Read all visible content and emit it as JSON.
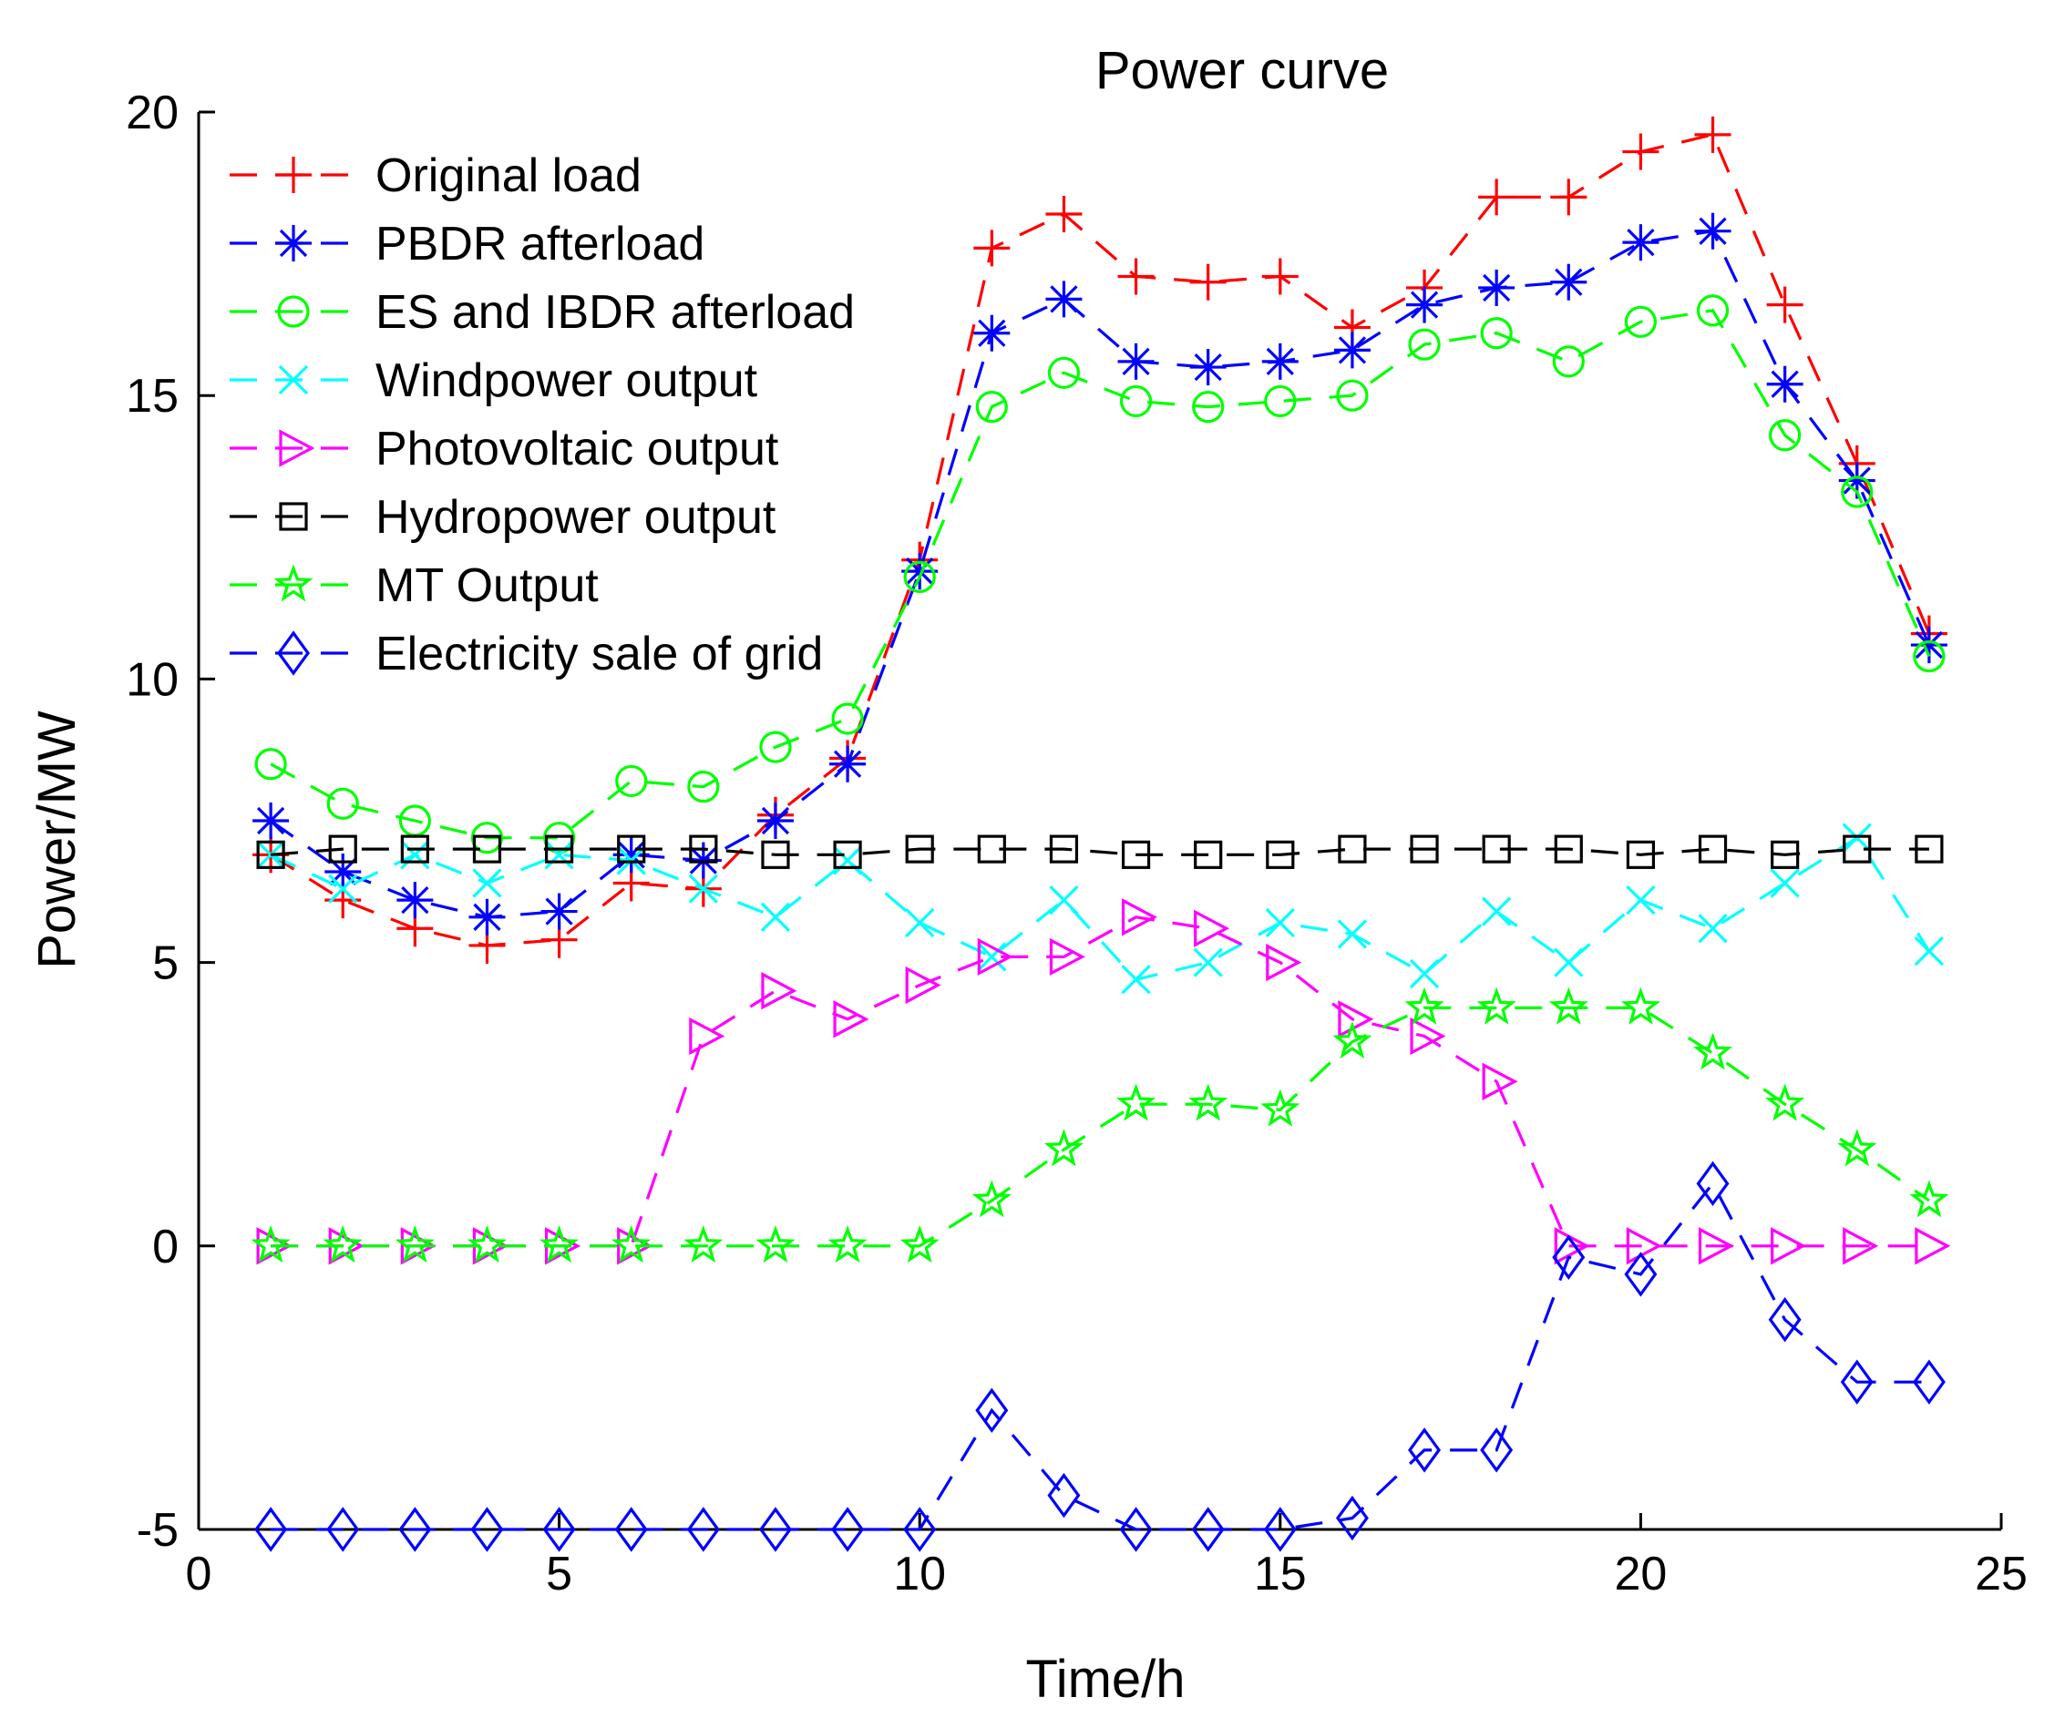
{
  "chart_data": {
    "type": "line",
    "title": "Power curve",
    "xlabel": "Time/h",
    "ylabel": "Power/MW",
    "xlim": [
      0,
      25
    ],
    "ylim": [
      -5,
      20
    ],
    "xticks": [
      "0",
      "5",
      "10",
      "15",
      "20",
      "25"
    ],
    "yticks": [
      "-5",
      "0",
      "5",
      "10",
      "15",
      "20"
    ],
    "grid": false,
    "legend_position": "top-left",
    "x": [
      1,
      2,
      3,
      4,
      5,
      6,
      7,
      8,
      9,
      10,
      11,
      12,
      13,
      14,
      15,
      16,
      17,
      18,
      19,
      20,
      21,
      22,
      23,
      24
    ],
    "series": [
      {
        "name": "Original load",
        "color": "#ff0000",
        "marker": "plus",
        "values": [
          6.9,
          6.1,
          5.6,
          5.3,
          5.4,
          6.4,
          6.3,
          7.6,
          8.6,
          12.1,
          17.6,
          18.2,
          17.1,
          17.0,
          17.1,
          16.2,
          16.9,
          18.5,
          18.5,
          19.3,
          19.6,
          16.6,
          13.8,
          10.8
        ]
      },
      {
        "name": "PBDR afterload",
        "color": "#0000ff",
        "marker": "asterisk",
        "values": [
          7.5,
          6.6,
          6.1,
          5.8,
          5.9,
          6.9,
          6.8,
          7.5,
          8.5,
          11.9,
          16.1,
          16.7,
          15.6,
          15.5,
          15.6,
          15.8,
          16.6,
          16.9,
          17.0,
          17.7,
          17.9,
          15.2,
          13.5,
          10.6
        ]
      },
      {
        "name": "ES and IBDR afterload",
        "color": "#00ff00",
        "marker": "circle",
        "values": [
          8.5,
          7.8,
          7.5,
          7.2,
          7.2,
          8.2,
          8.1,
          8.8,
          9.3,
          11.8,
          14.8,
          15.4,
          14.9,
          14.8,
          14.9,
          15.0,
          15.9,
          16.1,
          15.6,
          16.3,
          16.5,
          14.3,
          13.3,
          10.4
        ]
      },
      {
        "name": "Windpower output",
        "color": "#00ffff",
        "marker": "x",
        "values": [
          6.9,
          6.3,
          6.9,
          6.4,
          6.9,
          6.8,
          6.3,
          5.8,
          6.8,
          5.7,
          5.1,
          6.1,
          4.7,
          5.0,
          5.7,
          5.5,
          4.8,
          5.9,
          5.0,
          6.1,
          5.6,
          6.4,
          7.2,
          5.2
        ]
      },
      {
        "name": "Photovoltaic output",
        "color": "#ff00ff",
        "marker": "triangle-right",
        "values": [
          0,
          0,
          0,
          0,
          0,
          0,
          3.7,
          4.5,
          4.0,
          4.6,
          5.1,
          5.1,
          5.8,
          5.6,
          5.0,
          4.0,
          3.7,
          2.9,
          0,
          0,
          0,
          0,
          0,
          0
        ]
      },
      {
        "name": "Hydropower output",
        "color": "#000000",
        "marker": "square",
        "values": [
          6.9,
          7.0,
          7.0,
          7.0,
          7.0,
          7.0,
          7.0,
          6.9,
          6.9,
          7.0,
          7.0,
          7.0,
          6.9,
          6.9,
          6.9,
          7.0,
          7.0,
          7.0,
          7.0,
          6.9,
          7.0,
          6.9,
          7.0,
          7.0
        ]
      },
      {
        "name": "MT Output",
        "color": "#00ff00",
        "marker": "pentagram",
        "values": [
          0,
          0,
          0,
          0,
          0,
          0,
          0,
          0,
          0,
          0,
          0.8,
          1.7,
          2.5,
          2.5,
          2.4,
          3.6,
          4.2,
          4.2,
          4.2,
          4.2,
          3.4,
          2.5,
          1.7,
          0.8
        ]
      },
      {
        "name": "Electricity sale of grid",
        "color": "#0000ff",
        "marker": "diamond",
        "values": [
          -5,
          -5,
          -5,
          -5,
          -5,
          -5,
          -5,
          -5,
          -5,
          -5,
          -2.9,
          -4.4,
          -5,
          -5,
          -5,
          -4.8,
          -3.6,
          -3.6,
          -0.2,
          -0.5,
          1.1,
          -1.3,
          -2.4,
          -2.4
        ]
      }
    ]
  }
}
